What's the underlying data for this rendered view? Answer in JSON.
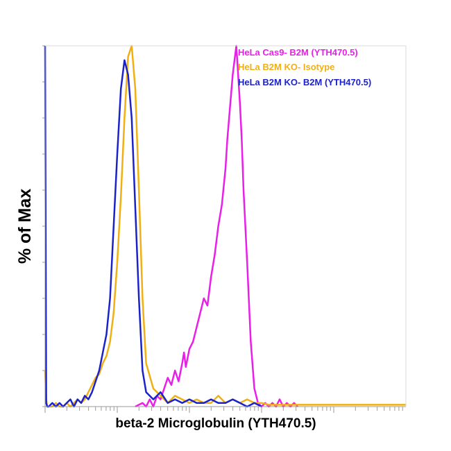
{
  "chart_data": {
    "type": "line",
    "title": "",
    "xlabel": "beta-2 Microglobulin (YTH470.5)",
    "ylabel": "% of Max",
    "x_scale": "log",
    "xlim": [
      0,
      100
    ],
    "ylim": [
      0,
      100
    ],
    "grid": false,
    "legend_position": "top-right",
    "series": [
      {
        "name": "HeLa Cas9- B2M (YTH470.5)",
        "color": "#e91ee8",
        "x": [
          25,
          27,
          28,
          29,
          30,
          31,
          32,
          33,
          34,
          35,
          36,
          37,
          38,
          38.5,
          39,
          40,
          41,
          42,
          43,
          44,
          45,
          46,
          47,
          48,
          49,
          50,
          50.5,
          51,
          51.5,
          52,
          52.5,
          53,
          53.5,
          54,
          54.5,
          55,
          56,
          57,
          58,
          59,
          60,
          61,
          62,
          63,
          64,
          65,
          66,
          67,
          68,
          69,
          70
        ],
        "values": [
          0,
          1,
          0,
          2,
          0,
          3,
          2,
          5,
          8,
          6,
          10,
          7,
          12,
          15,
          11,
          16,
          18,
          22,
          26,
          30,
          28,
          36,
          42,
          50,
          56,
          66,
          74,
          80,
          86,
          92,
          96,
          100,
          92,
          84,
          74,
          60,
          40,
          18,
          5,
          1,
          0,
          1,
          0,
          1,
          0,
          2,
          0,
          1,
          0,
          1,
          0
        ]
      },
      {
        "name": "HeLa B2M KO- Isotype",
        "color": "#f0b014",
        "x": [
          0,
          0.3,
          0.6,
          1,
          2,
          3,
          4,
          5,
          6,
          7,
          8,
          9,
          10,
          11,
          12,
          13,
          14,
          15,
          16,
          17,
          18,
          19,
          20,
          21,
          22,
          23,
          24,
          25,
          26,
          27,
          28,
          30,
          32,
          34,
          36,
          38,
          40,
          42,
          44,
          46,
          48,
          50,
          52,
          54,
          56,
          58,
          60,
          62,
          66,
          70,
          75,
          80,
          85,
          90,
          95,
          100
        ],
        "values": [
          10,
          2,
          0,
          0,
          0,
          1,
          0,
          0,
          1,
          0,
          1,
          2,
          1,
          2,
          4,
          6,
          8,
          9,
          12,
          14,
          18,
          26,
          40,
          58,
          80,
          97,
          100,
          88,
          60,
          30,
          12,
          5,
          3,
          1,
          3,
          2,
          1,
          2,
          1,
          1,
          3,
          1,
          2,
          1,
          2,
          1,
          1,
          0.5,
          0.5,
          0.5,
          0.5,
          0.5,
          0.5,
          0.5,
          0.5,
          0.5
        ]
      },
      {
        "name": "HeLa B2M KO- B2M (YTH470.5)",
        "color": "#1b22c8",
        "x": [
          0,
          0.3,
          0.6,
          1,
          2,
          3,
          4,
          5,
          6,
          7,
          8,
          9,
          10,
          11,
          12,
          13,
          14,
          15,
          16,
          17,
          18,
          19,
          20,
          21,
          22,
          23,
          24,
          25,
          26,
          27,
          28,
          30,
          32,
          34,
          36,
          38,
          40,
          42,
          44,
          46,
          48,
          50,
          52,
          54,
          56,
          58,
          60
        ],
        "values": [
          100,
          1,
          0,
          0,
          1,
          0,
          1,
          0,
          1,
          2,
          0,
          2,
          1,
          3,
          2,
          4,
          7,
          10,
          15,
          20,
          30,
          50,
          70,
          88,
          96,
          92,
          80,
          55,
          30,
          10,
          4,
          2,
          4,
          1,
          2,
          1,
          2,
          1,
          1,
          2,
          1,
          1,
          2,
          1,
          0,
          1,
          0
        ]
      }
    ]
  }
}
